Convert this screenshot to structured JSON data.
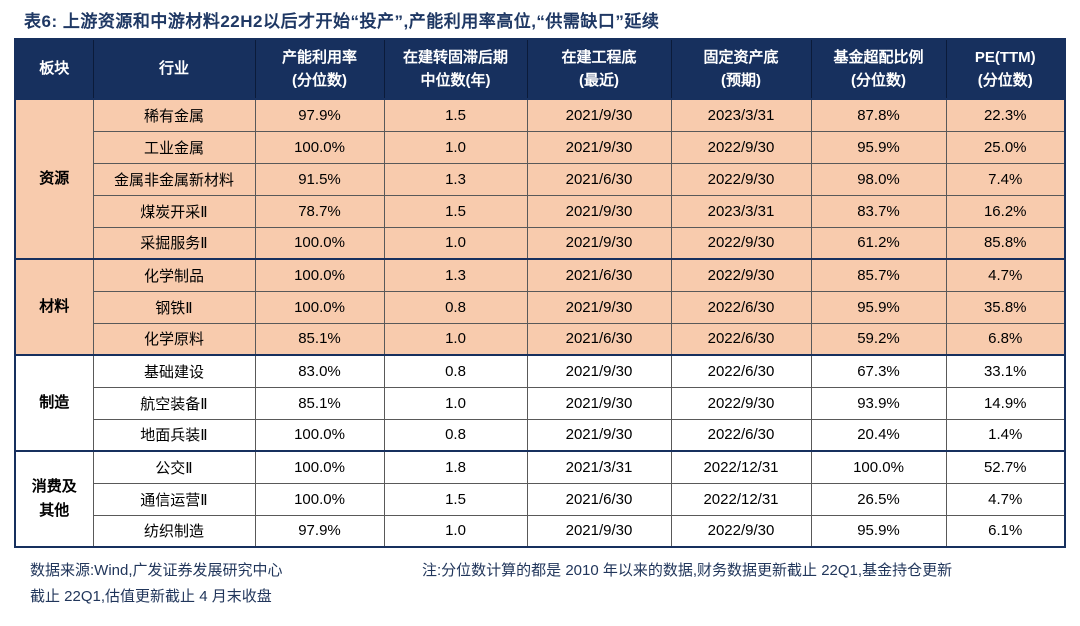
{
  "title": "表6:  上游资源和中游材料22H2以后才开始“投产”,产能利用率高位,“供需缺口”延续",
  "columns": [
    {
      "line1": "板块",
      "line2": ""
    },
    {
      "line1": "行业",
      "line2": ""
    },
    {
      "line1": "产能利用率",
      "line2": "(分位数)"
    },
    {
      "line1": "在建转固滞后期",
      "line2": "中位数(年)"
    },
    {
      "line1": "在建工程底",
      "line2": "(最近)"
    },
    {
      "line1": "固定资产底",
      "line2": "(预期)"
    },
    {
      "line1": "基金超配比例",
      "line2": "(分位数)"
    },
    {
      "line1": "PE(TTM)",
      "line2": "(分位数)"
    }
  ],
  "groups": [
    {
      "sector": "资源",
      "highlight": true,
      "rows": [
        [
          "稀有金属",
          "97.9%",
          "1.5",
          "2021/9/30",
          "2023/3/31",
          "87.8%",
          "22.3%"
        ],
        [
          "工业金属",
          "100.0%",
          "1.0",
          "2021/9/30",
          "2022/9/30",
          "95.9%",
          "25.0%"
        ],
        [
          "金属非金属新材料",
          "91.5%",
          "1.3",
          "2021/6/30",
          "2022/9/30",
          "98.0%",
          "7.4%"
        ],
        [
          "煤炭开采Ⅱ",
          "78.7%",
          "1.5",
          "2021/9/30",
          "2023/3/31",
          "83.7%",
          "16.2%"
        ],
        [
          "采掘服务Ⅱ",
          "100.0%",
          "1.0",
          "2021/9/30",
          "2022/9/30",
          "61.2%",
          "85.8%"
        ]
      ]
    },
    {
      "sector": "材料",
      "highlight": true,
      "rows": [
        [
          "化学制品",
          "100.0%",
          "1.3",
          "2021/6/30",
          "2022/9/30",
          "85.7%",
          "4.7%"
        ],
        [
          "钢铁Ⅱ",
          "100.0%",
          "0.8",
          "2021/9/30",
          "2022/6/30",
          "95.9%",
          "35.8%"
        ],
        [
          "化学原料",
          "85.1%",
          "1.0",
          "2021/6/30",
          "2022/6/30",
          "59.2%",
          "6.8%"
        ]
      ]
    },
    {
      "sector": "制造",
      "highlight": false,
      "rows": [
        [
          "基础建设",
          "83.0%",
          "0.8",
          "2021/9/30",
          "2022/6/30",
          "67.3%",
          "33.1%"
        ],
        [
          "航空装备Ⅱ",
          "85.1%",
          "1.0",
          "2021/9/30",
          "2022/9/30",
          "93.9%",
          "14.9%"
        ],
        [
          "地面兵装Ⅱ",
          "100.0%",
          "0.8",
          "2021/9/30",
          "2022/6/30",
          "20.4%",
          "1.4%"
        ]
      ]
    },
    {
      "sector": "消费及\n其他",
      "highlight": false,
      "rows": [
        [
          "公交Ⅱ",
          "100.0%",
          "1.8",
          "2021/3/31",
          "2022/12/31",
          "100.0%",
          "52.7%"
        ],
        [
          "通信运营Ⅱ",
          "100.0%",
          "1.5",
          "2021/6/30",
          "2022/12/31",
          "26.5%",
          "4.7%"
        ],
        [
          "纺织制造",
          "97.9%",
          "1.0",
          "2021/9/30",
          "2022/9/30",
          "95.9%",
          "6.1%"
        ]
      ]
    }
  ],
  "footer": {
    "source": "数据来源:Wind,广发证券发展研究中心",
    "note": "注:分位数计算的都是 2010 年以来的数据,财务数据更新截止 22Q1,基金持仓更新",
    "note_cont": "截止 22Q1,估值更新截止 4 月末收盘"
  },
  "colors": {
    "header_bg": "#17305E",
    "header_text": "#FFFFFF",
    "row_highlight": "#F8CBAD",
    "accent_text": "#1F3864"
  }
}
